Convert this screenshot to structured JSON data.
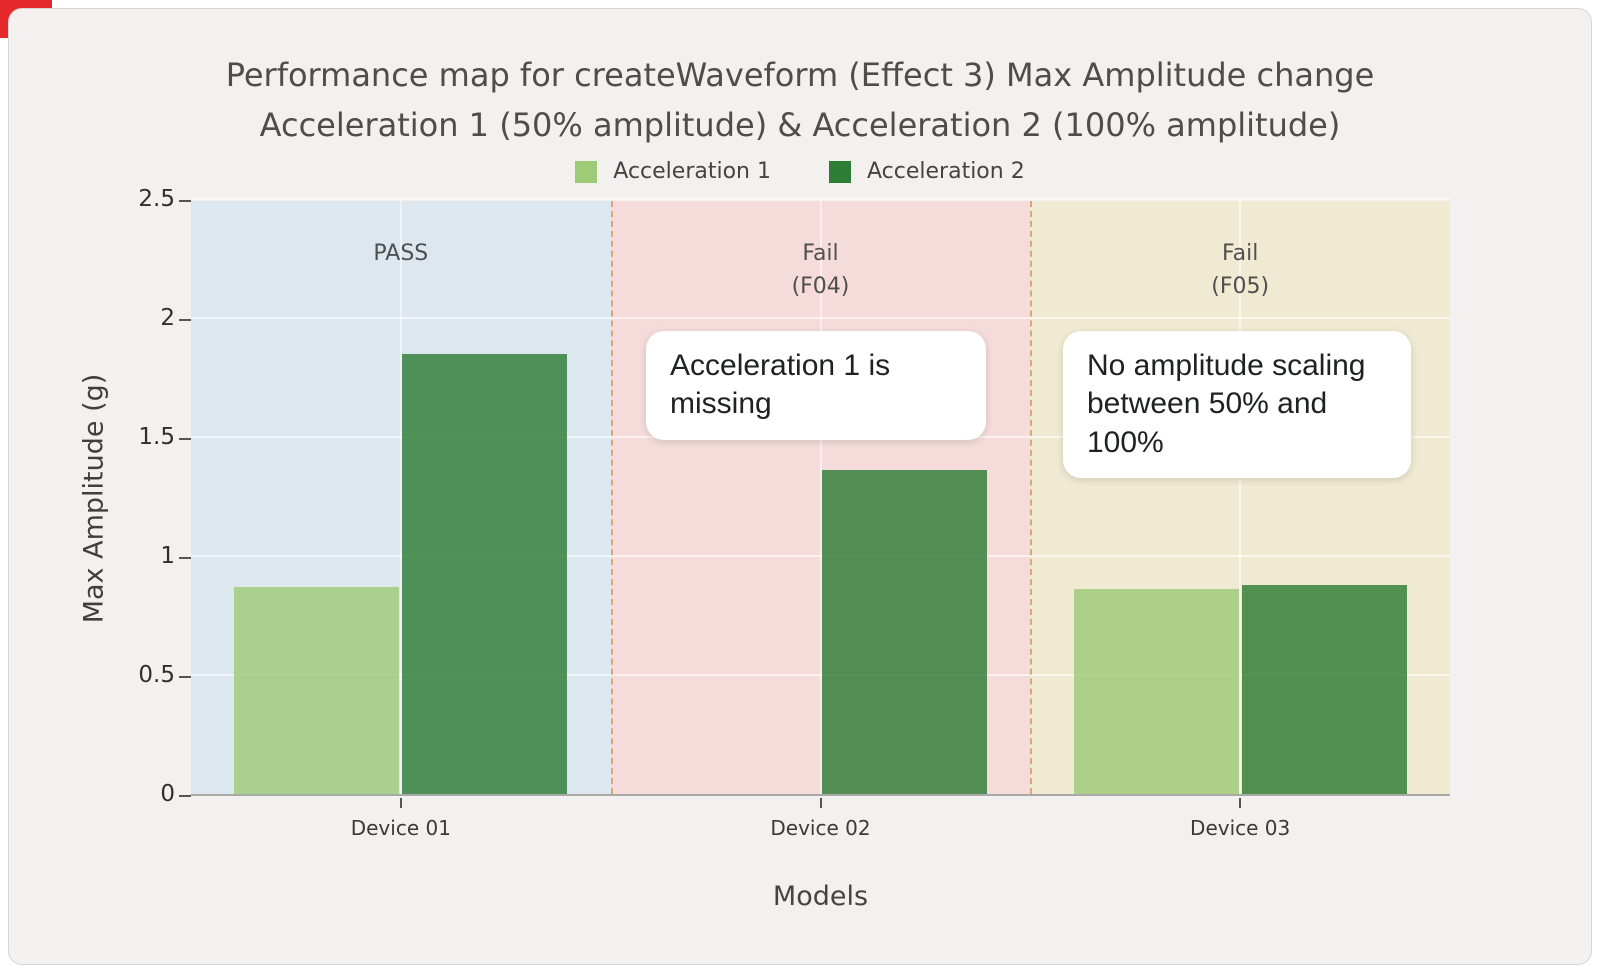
{
  "page": {
    "accent_corner_color": "#e5282c",
    "card_background": "#f2f1ef"
  },
  "chart_data": {
    "type": "bar",
    "title_line1": "Performance map for createWaveform (Effect 3) Max Amplitude change",
    "title_line2": "Acceleration 1 (50% amplitude) & Acceleration 2 (100% amplitude)",
    "xlabel": "Models",
    "ylabel": "Max Amplitude (g)",
    "ylim": [
      0,
      2.5
    ],
    "yticks": [
      0,
      0.5,
      1,
      1.5,
      2,
      2.5
    ],
    "categories": [
      "Device 01",
      "Device 02",
      "Device 03"
    ],
    "series": [
      {
        "name": "Acceleration 1",
        "color": "#9ecb77",
        "values": [
          0.87,
          null,
          0.86
        ]
      },
      {
        "name": "Acceleration 2",
        "color": "#2e7d34",
        "values": [
          1.85,
          1.36,
          0.88
        ]
      }
    ],
    "zones": [
      {
        "label": "PASS",
        "sublabel": "",
        "color": "#dde7f0"
      },
      {
        "label": "Fail",
        "sublabel": "(F04)",
        "color": "#f5dcda"
      },
      {
        "label": "Fail",
        "sublabel": "(F05)",
        "color": "#f1ead2"
      }
    ],
    "annotations": [
      {
        "text": "Acceleration 1 is missing"
      },
      {
        "text": "No amplitude scaling between 50% and 100%"
      }
    ],
    "legend_position": "top",
    "grid": true
  }
}
